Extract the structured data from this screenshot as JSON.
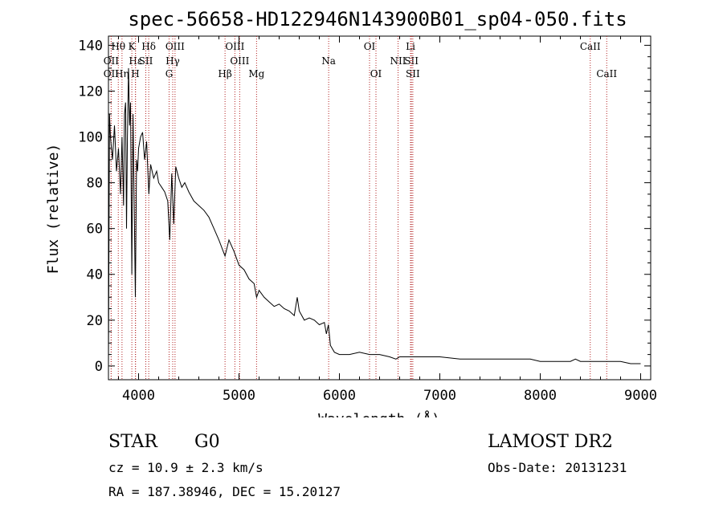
{
  "chart_data": {
    "type": "line",
    "title": "spec-56658-HD122946N143900B01_sp04-050.fits",
    "xlabel": "Wavelength (Å)",
    "ylabel": "Flux (relative)",
    "xlim": [
      3700,
      9100
    ],
    "ylim": [
      -6,
      144
    ],
    "xticks": [
      4000,
      5000,
      6000,
      7000,
      8000,
      9000
    ],
    "yticks": [
      0,
      20,
      40,
      60,
      80,
      100,
      120,
      140
    ],
    "grid": false,
    "line_color": "#000000",
    "marker_color": "#b22222",
    "series": [
      {
        "x": [
          3700,
          3710,
          3720,
          3740,
          3760,
          3780,
          3800,
          3820,
          3835,
          3850,
          3860,
          3870,
          3880,
          3889,
          3900,
          3910,
          3920,
          3933,
          3945,
          3955,
          3968,
          3980,
          3990,
          4000,
          4020,
          4040,
          4060,
          4080,
          4102,
          4120,
          4150,
          4180,
          4200,
          4230,
          4260,
          4290,
          4310,
          4330,
          4350,
          4370,
          4400,
          4430,
          4460,
          4500,
          4550,
          4600,
          4650,
          4700,
          4750,
          4800,
          4861,
          4900,
          4950,
          5000,
          5050,
          5100,
          5150,
          5175,
          5200,
          5250,
          5300,
          5350,
          5400,
          5450,
          5500,
          5550,
          5580,
          5600,
          5650,
          5700,
          5750,
          5800,
          5850,
          5870,
          5890,
          5910,
          5950,
          6000,
          6100,
          6200,
          6300,
          6400,
          6500,
          6563,
          6600,
          6700,
          6800,
          6900,
          7000,
          7200,
          7400,
          7600,
          7800,
          7900,
          8000,
          8200,
          8300,
          8350,
          8400,
          8500,
          8600,
          8700,
          8800,
          8900,
          9000
        ],
        "y": [
          0,
          110,
          100,
          90,
          105,
          85,
          95,
          75,
          100,
          70,
          110,
          115,
          60,
          100,
          130,
          105,
          115,
          40,
          110,
          75,
          30,
          90,
          85,
          95,
          100,
          102,
          90,
          98,
          75,
          88,
          82,
          85,
          80,
          78,
          76,
          72,
          55,
          84,
          62,
          87,
          82,
          78,
          80,
          76,
          72,
          70,
          68,
          65,
          60,
          55,
          48,
          55,
          50,
          44,
          42,
          38,
          36,
          30,
          33,
          30,
          28,
          26,
          27,
          25,
          24,
          22,
          30,
          24,
          20,
          21,
          20,
          18,
          19,
          14,
          18,
          9,
          6,
          5,
          5,
          6,
          5,
          5,
          4,
          3,
          4,
          4,
          4,
          4,
          4,
          3,
          3,
          3,
          3,
          3,
          2,
          2,
          2,
          3,
          2,
          2,
          2,
          2,
          2,
          1,
          1
        ]
      }
    ],
    "lines": [
      {
        "label": "Hθ",
        "x": 3798,
        "row": 0
      },
      {
        "label": "K",
        "x": 3933,
        "row": 0
      },
      {
        "label": "Hδ",
        "x": 4101,
        "row": 0
      },
      {
        "label": "OIII",
        "x": 4363,
        "row": 0
      },
      {
        "label": "OIII",
        "x": 4959,
        "row": 0
      },
      {
        "label": "OI",
        "x": 6300,
        "row": 0
      },
      {
        "label": "Li",
        "x": 6708,
        "row": 0
      },
      {
        "label": "CaII",
        "x": 8498,
        "row": 0
      },
      {
        "label": "OII",
        "x": 3727,
        "row": 1
      },
      {
        "label": "Hε",
        "x": 3970,
        "row": 1
      },
      {
        "label": "SII",
        "x": 4072,
        "row": 1
      },
      {
        "label": "Hγ",
        "x": 4340,
        "row": 1
      },
      {
        "label": "OIII",
        "x": 5007,
        "row": 1
      },
      {
        "label": "Na",
        "x": 5893,
        "row": 1
      },
      {
        "label": "NII",
        "x": 6584,
        "row": 1
      },
      {
        "label": "SII",
        "x": 6717,
        "row": 1
      },
      {
        "label": "OII",
        "x": 3727,
        "row": 2
      },
      {
        "label": "Hη",
        "x": 3835,
        "row": 2
      },
      {
        "label": "H",
        "x": 3968,
        "row": 2
      },
      {
        "label": "G",
        "x": 4304,
        "row": 2
      },
      {
        "label": "Hβ",
        "x": 4861,
        "row": 2
      },
      {
        "label": "Mg",
        "x": 5175,
        "row": 2
      },
      {
        "label": "OI",
        "x": 6364,
        "row": 2
      },
      {
        "label": "SII",
        "x": 6731,
        "row": 2
      },
      {
        "label": "CaII",
        "x": 8662,
        "row": 2
      }
    ]
  },
  "info": {
    "class": "STAR",
    "subclass": "G0",
    "survey": "LAMOST DR2",
    "cz": "cz = 10.9 ± 2.3 km/s",
    "obs_date": "Obs-Date: 20131231",
    "coords": "RA = 187.38946, DEC =  15.20127"
  }
}
